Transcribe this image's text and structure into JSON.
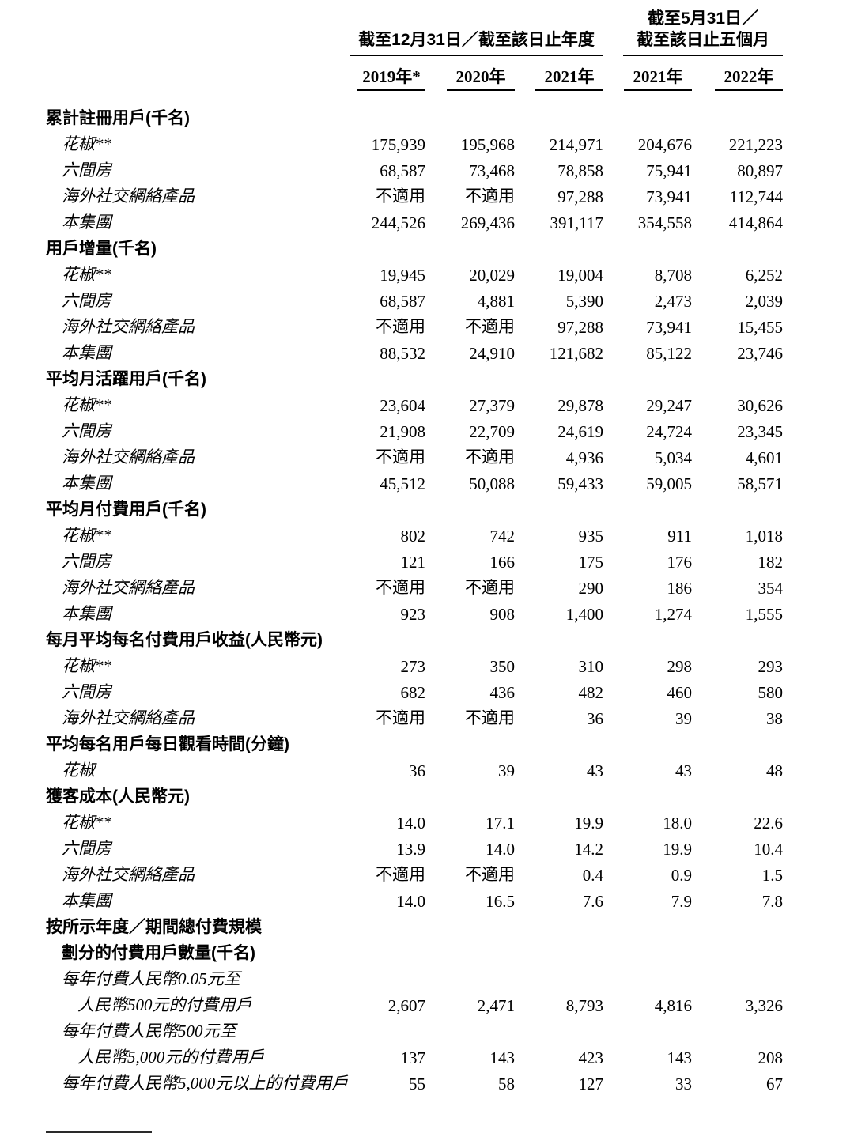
{
  "page": {
    "background": "#ffffff",
    "text_color": "#000000"
  },
  "header": {
    "group1": {
      "label": "截至12月31日／截至該日止年度"
    },
    "group2": {
      "line1": "截至5月31日／",
      "line2": "截至該日止五個月"
    },
    "years": [
      "2019年*",
      "2020年",
      "2021年",
      "2021年",
      "2022年"
    ]
  },
  "sections": [
    {
      "title_lines": [
        "累計註冊用戶(千名)"
      ],
      "rows": [
        {
          "label_lines": [
            "花椒**"
          ],
          "values": [
            "175,939",
            "195,968",
            "214,971",
            "204,676",
            "221,223"
          ]
        },
        {
          "label_lines": [
            "六間房"
          ],
          "values": [
            "68,587",
            "73,468",
            "78,858",
            "75,941",
            "80,897"
          ]
        },
        {
          "label_lines": [
            "海外社交網絡產品"
          ],
          "values": [
            "不適用",
            "不適用",
            "97,288",
            "73,941",
            "112,744"
          ]
        },
        {
          "label_lines": [
            "本集團"
          ],
          "values": [
            "244,526",
            "269,436",
            "391,117",
            "354,558",
            "414,864"
          ]
        }
      ]
    },
    {
      "title_lines": [
        "用戶增量(千名)"
      ],
      "rows": [
        {
          "label_lines": [
            "花椒**"
          ],
          "values": [
            "19,945",
            "20,029",
            "19,004",
            "8,708",
            "6,252"
          ]
        },
        {
          "label_lines": [
            "六間房"
          ],
          "values": [
            "68,587",
            "4,881",
            "5,390",
            "2,473",
            "2,039"
          ]
        },
        {
          "label_lines": [
            "海外社交網絡產品"
          ],
          "values": [
            "不適用",
            "不適用",
            "97,288",
            "73,941",
            "15,455"
          ]
        },
        {
          "label_lines": [
            "本集團"
          ],
          "values": [
            "88,532",
            "24,910",
            "121,682",
            "85,122",
            "23,746"
          ]
        }
      ]
    },
    {
      "title_lines": [
        "平均月活躍用戶(千名)"
      ],
      "rows": [
        {
          "label_lines": [
            "花椒**"
          ],
          "values": [
            "23,604",
            "27,379",
            "29,878",
            "29,247",
            "30,626"
          ]
        },
        {
          "label_lines": [
            "六間房"
          ],
          "values": [
            "21,908",
            "22,709",
            "24,619",
            "24,724",
            "23,345"
          ]
        },
        {
          "label_lines": [
            "海外社交網絡產品"
          ],
          "values": [
            "不適用",
            "不適用",
            "4,936",
            "5,034",
            "4,601"
          ]
        },
        {
          "label_lines": [
            "本集團"
          ],
          "values": [
            "45,512",
            "50,088",
            "59,433",
            "59,005",
            "58,571"
          ]
        }
      ]
    },
    {
      "title_lines": [
        "平均月付費用戶(千名)"
      ],
      "rows": [
        {
          "label_lines": [
            "花椒**"
          ],
          "values": [
            "802",
            "742",
            "935",
            "911",
            "1,018"
          ]
        },
        {
          "label_lines": [
            "六間房"
          ],
          "values": [
            "121",
            "166",
            "175",
            "176",
            "182"
          ]
        },
        {
          "label_lines": [
            "海外社交網絡產品"
          ],
          "values": [
            "不適用",
            "不適用",
            "290",
            "186",
            "354"
          ]
        },
        {
          "label_lines": [
            "本集團"
          ],
          "values": [
            "923",
            "908",
            "1,400",
            "1,274",
            "1,555"
          ]
        }
      ]
    },
    {
      "title_lines": [
        "每月平均每名付費用戶收益(人民幣元)"
      ],
      "rows": [
        {
          "label_lines": [
            "花椒**"
          ],
          "values": [
            "273",
            "350",
            "310",
            "298",
            "293"
          ]
        },
        {
          "label_lines": [
            "六間房"
          ],
          "values": [
            "682",
            "436",
            "482",
            "460",
            "580"
          ]
        },
        {
          "label_lines": [
            "海外社交網絡產品"
          ],
          "values": [
            "不適用",
            "不適用",
            "36",
            "39",
            "38"
          ]
        }
      ]
    },
    {
      "title_lines": [
        "平均每名用戶每日觀看時間(分鐘)"
      ],
      "rows": [
        {
          "label_lines": [
            "花椒"
          ],
          "values": [
            "36",
            "39",
            "43",
            "43",
            "48"
          ]
        }
      ]
    },
    {
      "title_lines": [
        "獲客成本(人民幣元)"
      ],
      "rows": [
        {
          "label_lines": [
            "花椒**"
          ],
          "values": [
            "14.0",
            "17.1",
            "19.9",
            "18.0",
            "22.6"
          ]
        },
        {
          "label_lines": [
            "六間房"
          ],
          "values": [
            "13.9",
            "14.0",
            "14.2",
            "19.9",
            "10.4"
          ]
        },
        {
          "label_lines": [
            "海外社交網絡產品"
          ],
          "values": [
            "不適用",
            "不適用",
            "0.4",
            "0.9",
            "1.5"
          ]
        },
        {
          "label_lines": [
            "本集團"
          ],
          "values": [
            "14.0",
            "16.5",
            "7.6",
            "7.9",
            "7.8"
          ]
        }
      ]
    },
    {
      "title_lines": [
        "按所示年度／期間總付費規模",
        "劃分的付費用戶數量(千名)"
      ],
      "rows": [
        {
          "label_lines": [
            "每年付費人民幣0.05元至",
            "人民幣500元的付費用戶"
          ],
          "values": [
            "2,607",
            "2,471",
            "8,793",
            "4,816",
            "3,326"
          ]
        },
        {
          "label_lines": [
            "每年付費人民幣500元至",
            "人民幣5,000元的付費用戶"
          ],
          "values": [
            "137",
            "143",
            "423",
            "143",
            "208"
          ]
        },
        {
          "label_lines": [
            "每年付費人民幣5,000元以上的付費用戶"
          ],
          "values": [
            "55",
            "58",
            "127",
            "33",
            "67"
          ]
        }
      ]
    }
  ],
  "footnote_rule": {
    "visible": true
  }
}
